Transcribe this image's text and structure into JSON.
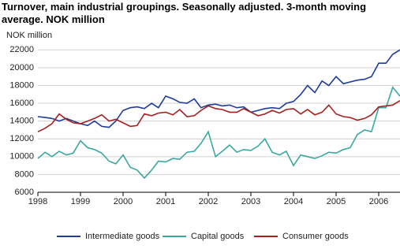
{
  "chart_data": {
    "type": "line",
    "title": "Turnover, main industrial groupings. Seasonally adjusted. 3-month moving average. NOK million",
    "y_label": "NOK million",
    "x": [
      1998.0,
      1998.17,
      1998.33,
      1998.5,
      1998.67,
      1998.83,
      1999.0,
      1999.17,
      1999.33,
      1999.5,
      1999.67,
      1999.83,
      2000.0,
      2000.17,
      2000.33,
      2000.5,
      2000.67,
      2000.83,
      2001.0,
      2001.17,
      2001.33,
      2001.5,
      2001.67,
      2001.83,
      2002.0,
      2002.17,
      2002.33,
      2002.5,
      2002.67,
      2002.83,
      2003.0,
      2003.17,
      2003.33,
      2003.5,
      2003.67,
      2003.83,
      2004.0,
      2004.17,
      2004.33,
      2004.5,
      2004.67,
      2004.83,
      2005.0,
      2005.17,
      2005.33,
      2005.5,
      2005.67,
      2005.83,
      2006.0,
      2006.17,
      2006.33,
      2006.5
    ],
    "series": [
      {
        "name": "Intermediate goods",
        "color": "#1f3c99",
        "values": [
          14500,
          14400,
          14300,
          14000,
          14300,
          14000,
          13700,
          13500,
          14000,
          13400,
          13300,
          14000,
          15200,
          15500,
          15600,
          15400,
          16000,
          15500,
          16800,
          16500,
          16100,
          16000,
          16500,
          15500,
          15800,
          15900,
          15700,
          15800,
          15500,
          15600,
          15000,
          15200,
          15400,
          15500,
          15400,
          16000,
          16200,
          17000,
          18000,
          17200,
          18500,
          18000,
          19000,
          18200,
          18400,
          18600,
          18700,
          19000,
          20500,
          20500,
          21500,
          22000
        ]
      },
      {
        "name": "Capital goods",
        "color": "#3aa8a0",
        "values": [
          9800,
          10500,
          10000,
          10600,
          10200,
          10400,
          11800,
          11000,
          10800,
          10400,
          9500,
          9200,
          10200,
          8800,
          8500,
          7600,
          8500,
          9500,
          9400,
          9800,
          9700,
          10500,
          10600,
          11500,
          12800,
          10000,
          10600,
          11300,
          10500,
          10800,
          10700,
          11200,
          12000,
          10500,
          10200,
          10600,
          9000,
          10200,
          10000,
          9800,
          10100,
          10500,
          10400,
          10800,
          11000,
          12500,
          13000,
          12800,
          15500,
          15500,
          17800,
          16800
        ]
      },
      {
        "name": "Consumer goods",
        "color": "#a5201f",
        "values": [
          12800,
          13200,
          13700,
          14800,
          14200,
          13800,
          13700,
          14000,
          14300,
          14700,
          14000,
          14200,
          13800,
          13400,
          13500,
          14800,
          14600,
          14900,
          15000,
          14700,
          15300,
          14500,
          14600,
          15200,
          15700,
          15400,
          15300,
          15000,
          15000,
          15400,
          15000,
          14600,
          14800,
          15200,
          14900,
          15300,
          15400,
          14800,
          15300,
          14700,
          15000,
          15800,
          14800,
          14500,
          14400,
          14100,
          14300,
          14700,
          15600,
          15700,
          15800,
          16300
        ]
      }
    ],
    "xlim": [
      1998,
      2006.5
    ],
    "xticks": [
      1998,
      1999,
      2000,
      2001,
      2002,
      2003,
      2004,
      2005,
      2006
    ],
    "ylim": [
      6000,
      23000
    ],
    "yticks": [
      6000,
      8000,
      10000,
      12000,
      14000,
      16000,
      18000,
      20000,
      22000
    ],
    "grid": true
  }
}
